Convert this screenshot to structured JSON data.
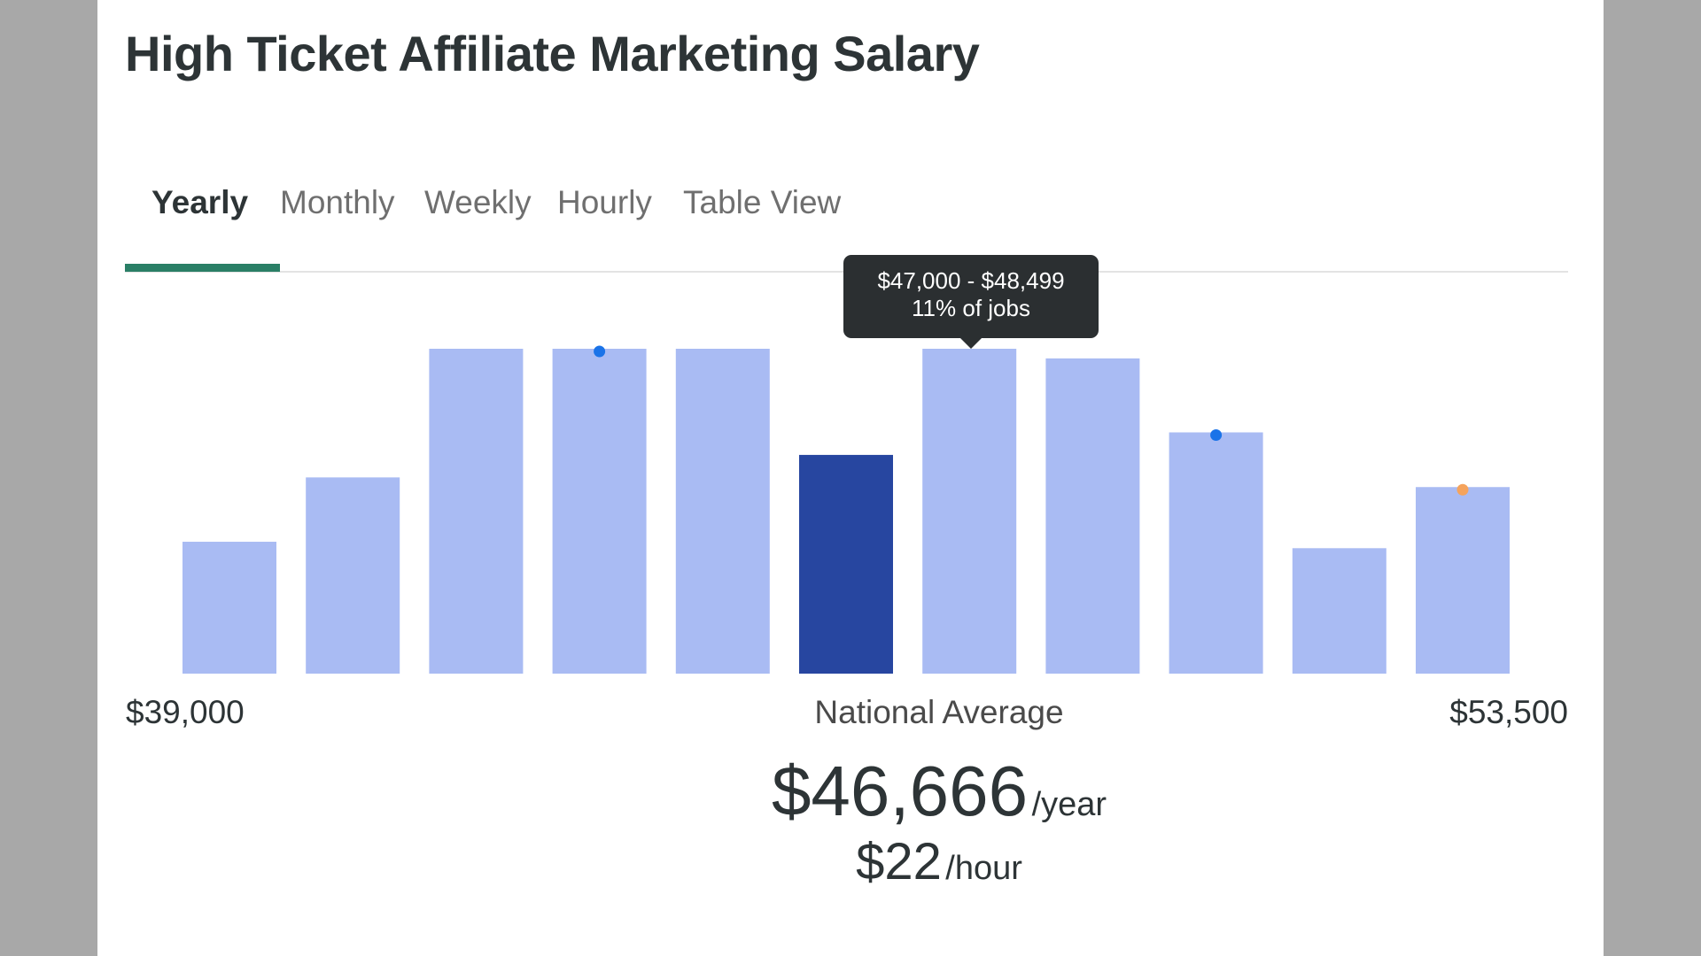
{
  "page": {
    "title": "High Ticket Affiliate Marketing Salary"
  },
  "tabs": [
    {
      "label": "Yearly",
      "active": true
    },
    {
      "label": "Monthly",
      "active": false
    },
    {
      "label": "Weekly",
      "active": false
    },
    {
      "label": "Hourly",
      "active": false
    },
    {
      "label": "Table View",
      "active": false
    }
  ],
  "tooltip": {
    "range": "$47,000 - $48,499",
    "share": "11% of jobs"
  },
  "axis": {
    "min_label": "$39,000",
    "mid_label": "National Average",
    "max_label": "$53,500"
  },
  "average": {
    "yearly_value": "$46,666",
    "yearly_unit": "/year",
    "hourly_value": "$22",
    "hourly_unit": "/hour"
  },
  "colors": {
    "bar": "#a9bbf3",
    "bar_highlight": "#2746a0",
    "marker_blue": "#1a73e8",
    "marker_orange": "#f5a35c",
    "tab_accent": "#2a7f66"
  },
  "chart_data": {
    "type": "bar",
    "x_range": [
      "$39,000",
      "$53,500"
    ],
    "values": [
      4.1,
      6.1,
      10.1,
      10.1,
      10.1,
      6.8,
      10.1,
      9.8,
      7.5,
      3.9,
      5.8
    ],
    "highlight_index": 5,
    "tooltip_index": 6,
    "markers": [
      {
        "bar_index": 3,
        "color": "blue"
      },
      {
        "bar_index": 8,
        "color": "blue"
      },
      {
        "bar_index": 10,
        "color": "orange"
      }
    ],
    "ylim": [
      0,
      10.1
    ],
    "grid": false,
    "legend": "none"
  }
}
